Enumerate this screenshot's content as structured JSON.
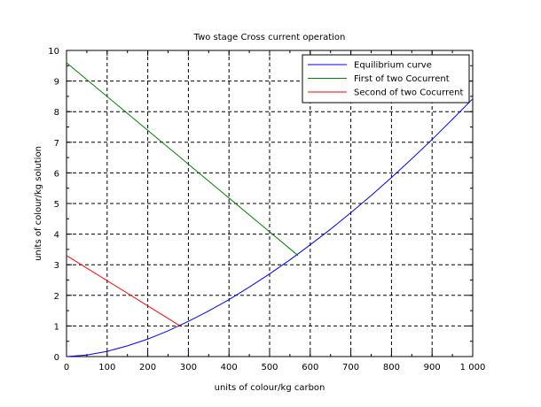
{
  "chart_data": {
    "type": "line",
    "title": "Two stage Cross current operation",
    "xlabel": "units of colour/kg carbon",
    "ylabel": "units of colour/kg solution",
    "xlim": [
      0,
      1000
    ],
    "ylim": [
      0,
      10
    ],
    "x_ticks": [
      0,
      100,
      200,
      300,
      400,
      500,
      600,
      700,
      800,
      900,
      1000
    ],
    "x_tick_labels": [
      "0",
      "100",
      "200",
      "300",
      "400",
      "500",
      "600",
      "700",
      "800",
      "900",
      "1 000"
    ],
    "y_ticks": [
      0,
      1,
      2,
      3,
      4,
      5,
      6,
      7,
      8,
      9,
      10
    ],
    "y_tick_labels": [
      "0",
      "1",
      "2",
      "3",
      "4",
      "5",
      "6",
      "7",
      "8",
      "9",
      "10"
    ],
    "grid": true,
    "legend_position": "top-right",
    "series": [
      {
        "name": "Equilibrium curve",
        "color": "#0000ff",
        "x": [
          0,
          50,
          100,
          150,
          200,
          250,
          300,
          350,
          400,
          450,
          500,
          550,
          600,
          650,
          700,
          750,
          800,
          850,
          900,
          950,
          1000
        ],
        "y": [
          0,
          0.05,
          0.17,
          0.35,
          0.57,
          0.84,
          1.15,
          1.49,
          1.86,
          2.27,
          2.7,
          3.16,
          3.65,
          4.16,
          4.7,
          5.26,
          5.85,
          6.46,
          7.09,
          7.75,
          8.42
        ]
      },
      {
        "name": "First of two Cocurrent",
        "color": "#008000",
        "x": [
          0,
          570
        ],
        "y": [
          9.6,
          3.3
        ]
      },
      {
        "name": "Second of two Cocurrent",
        "color": "#ff0000",
        "x": [
          0,
          280
        ],
        "y": [
          3.3,
          1.0
        ]
      }
    ]
  }
}
